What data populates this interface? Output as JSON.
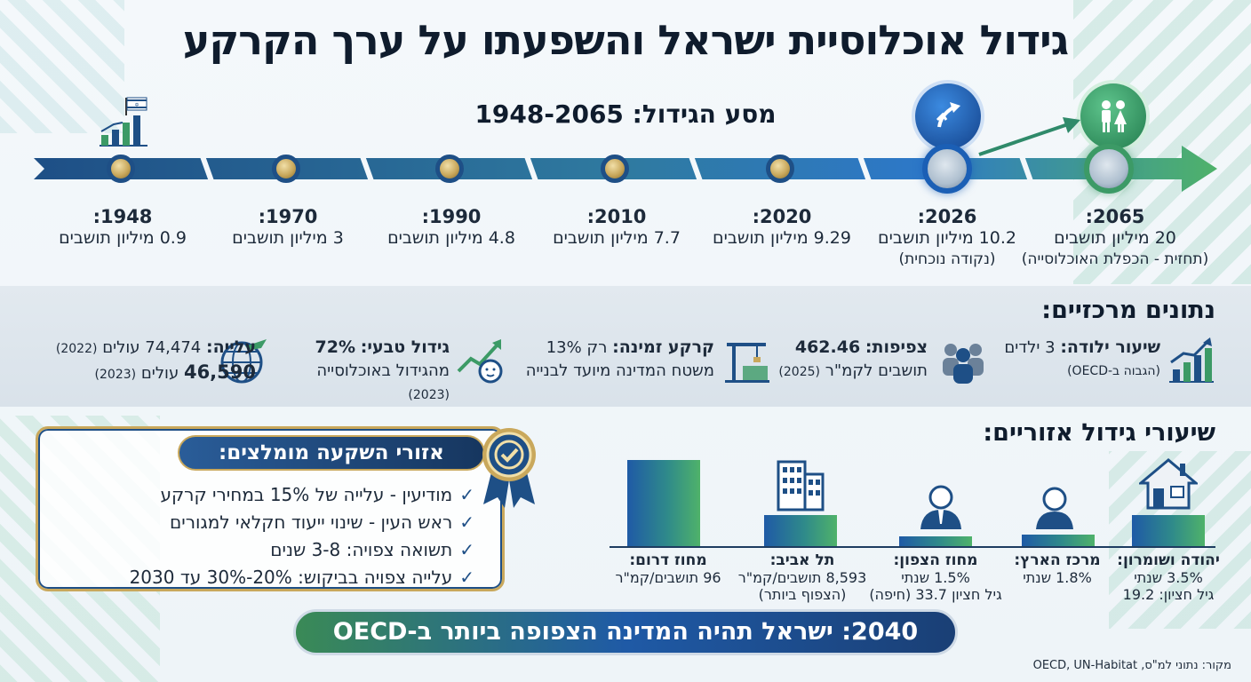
{
  "title": "גידול אוכלוסיית ישראל והשפעתו על ערך הקרקע",
  "timeline": {
    "subtitle": "מסע הגידול: 1948-2065",
    "points": [
      {
        "year": "1948:",
        "value": "0.9 מיליון תושבים",
        "note": ""
      },
      {
        "year": "1970:",
        "value": "3 מיליון תושבים",
        "note": ""
      },
      {
        "year": "1990:",
        "value": "4.8 מיליון תושבים",
        "note": ""
      },
      {
        "year": "2010:",
        "value": "7.7 מיליון תושבים",
        "note": ""
      },
      {
        "year": "2020:",
        "value": "9.29 מיליון תושבים",
        "note": ""
      },
      {
        "year": "2026:",
        "value": "10.2 מיליון תושבים",
        "note": "(נקודה נוכחית)"
      },
      {
        "year": "2065:",
        "value": "20 מיליון תושבים",
        "note": "(תחזית - הכפלת האוכלוסייה)"
      }
    ]
  },
  "key_stats": {
    "title": "נתונים מרכזיים:",
    "birth_rate": {
      "label": "שיעור ילודה:",
      "value": "3 ילדים",
      "note": "(הגבוה ב-OECD)"
    },
    "density": {
      "label": "צפיפות:",
      "value": "462.46",
      "note": "תושבים לקמ\"ר",
      "year": "(2025)"
    },
    "land": {
      "label": "קרקע זמינה:",
      "value": "רק 13%",
      "note": "משטח המדינה מיועד לבנייה"
    },
    "natural_growth": {
      "label": "גידול טבעי:",
      "value": "72%",
      "note": "מהגידול באוכלוסייה",
      "year": "(2023)"
    },
    "immigration": {
      "label": "עלייה:",
      "value1": "74,474 עולים",
      "year1": "(2022)",
      "value2": "46,590",
      "value2_unit": "עולים",
      "year2": "(2023)"
    }
  },
  "regional": {
    "title": "שיעורי גידול אזוריים:",
    "regions": [
      {
        "name": "יהודה ושומרון:",
        "line1": "3.5% שנתי",
        "line2": "גיל חציון: 19.2",
        "value": 3.5
      },
      {
        "name": "מרכז הארץ:",
        "line1": "1.8% שנתי",
        "line2": "",
        "value": 1.8
      },
      {
        "name": "מחוז הצפון:",
        "line1": "1.5% שנתי",
        "line2": "גיל חציון 33.7 (חיפה)",
        "value": 1.5
      },
      {
        "name": "תל אביב:",
        "line1": "8,593 תושבים/קמ\"ר",
        "line2": "(הצפוף ביותר)",
        "value": 8593
      },
      {
        "name": "מחוז דרום:",
        "line1": "96 תושבים/קמ\"ר",
        "line2": "",
        "value": 96
      }
    ]
  },
  "investment": {
    "title": "אזורי השקעה מומלצים:",
    "items": [
      "מודיעין - עלייה של 15% במחירי קרקע",
      "ראש העין - שינוי ייעוד חקלאי למגורים",
      "תשואה צפויה: 3-8 שנים",
      "עלייה צפויה בביקוש: 20%-30% עד 2030"
    ]
  },
  "banner": "2040: ישראל תהיה המדינה הצפופה ביותר ב-OECD",
  "source": "מקור: נתוני למ\"ס, OECD, UN-Habitat",
  "colors": {
    "navy": "#1e4f86",
    "green": "#3c9a66",
    "gold": "#c9a85c"
  }
}
